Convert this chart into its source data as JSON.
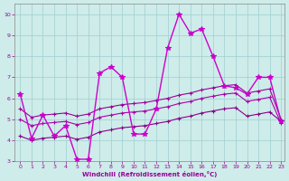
{
  "xlabel": "Windchill (Refroidissement éolien,°C)",
  "x_ticks": [
    0,
    1,
    2,
    3,
    4,
    5,
    6,
    7,
    8,
    9,
    10,
    11,
    12,
    13,
    14,
    15,
    16,
    17,
    18,
    19,
    20,
    21,
    22,
    23
  ],
  "ylim": [
    3,
    10.5
  ],
  "xlim": [
    -0.5,
    23.3
  ],
  "yticks": [
    3,
    4,
    5,
    6,
    7,
    8,
    9,
    10
  ],
  "background_color": "#ceecea",
  "grid_color": "#9ecece",
  "series": [
    {
      "x": [
        0,
        1,
        2,
        3,
        4,
        5,
        6,
        7,
        8,
        9,
        10,
        11,
        12,
        13,
        14,
        15,
        16,
        17,
        18,
        19,
        20,
        21,
        22,
        23
      ],
      "y": [
        6.2,
        4.1,
        5.2,
        4.2,
        4.7,
        3.1,
        3.1,
        7.2,
        7.5,
        7.0,
        4.3,
        4.3,
        5.5,
        8.4,
        10.0,
        9.1,
        9.3,
        8.0,
        6.6,
        6.5,
        6.2,
        7.0,
        7.0,
        4.9
      ],
      "color": "#cc00cc",
      "marker": "*",
      "markersize": 4,
      "linewidth": 1.0,
      "zorder": 4
    },
    {
      "x": [
        0,
        1,
        2,
        3,
        4,
        5,
        6,
        7,
        8,
        9,
        10,
        11,
        12,
        13,
        14,
        15,
        16,
        17,
        18,
        19,
        20,
        21,
        22,
        23
      ],
      "y": [
        5.5,
        5.1,
        5.2,
        5.25,
        5.3,
        5.15,
        5.25,
        5.5,
        5.6,
        5.7,
        5.75,
        5.8,
        5.9,
        6.0,
        6.15,
        6.25,
        6.4,
        6.5,
        6.6,
        6.65,
        6.25,
        6.35,
        6.45,
        5.0
      ],
      "color": "#990099",
      "marker": "+",
      "markersize": 3,
      "linewidth": 0.8,
      "zorder": 3
    },
    {
      "x": [
        0,
        1,
        2,
        3,
        4,
        5,
        6,
        7,
        8,
        9,
        10,
        11,
        12,
        13,
        14,
        15,
        16,
        17,
        18,
        19,
        20,
        21,
        22,
        23
      ],
      "y": [
        5.0,
        4.7,
        4.8,
        4.85,
        4.9,
        4.75,
        4.85,
        5.1,
        5.2,
        5.3,
        5.35,
        5.4,
        5.5,
        5.6,
        5.75,
        5.85,
        6.0,
        6.1,
        6.2,
        6.25,
        5.85,
        5.95,
        6.05,
        4.8
      ],
      "color": "#aa00aa",
      "marker": "+",
      "markersize": 3,
      "linewidth": 0.8,
      "zorder": 3
    },
    {
      "x": [
        0,
        1,
        2,
        3,
        4,
        5,
        6,
        7,
        8,
        9,
        10,
        11,
        12,
        13,
        14,
        15,
        16,
        17,
        18,
        19,
        20,
        21,
        22,
        23
      ],
      "y": [
        4.2,
        4.0,
        4.1,
        4.15,
        4.2,
        4.05,
        4.15,
        4.4,
        4.5,
        4.6,
        4.65,
        4.7,
        4.8,
        4.9,
        5.05,
        5.15,
        5.3,
        5.4,
        5.5,
        5.55,
        5.15,
        5.25,
        5.35,
        4.9
      ],
      "color": "#880088",
      "marker": "+",
      "markersize": 3,
      "linewidth": 0.8,
      "zorder": 3
    }
  ]
}
